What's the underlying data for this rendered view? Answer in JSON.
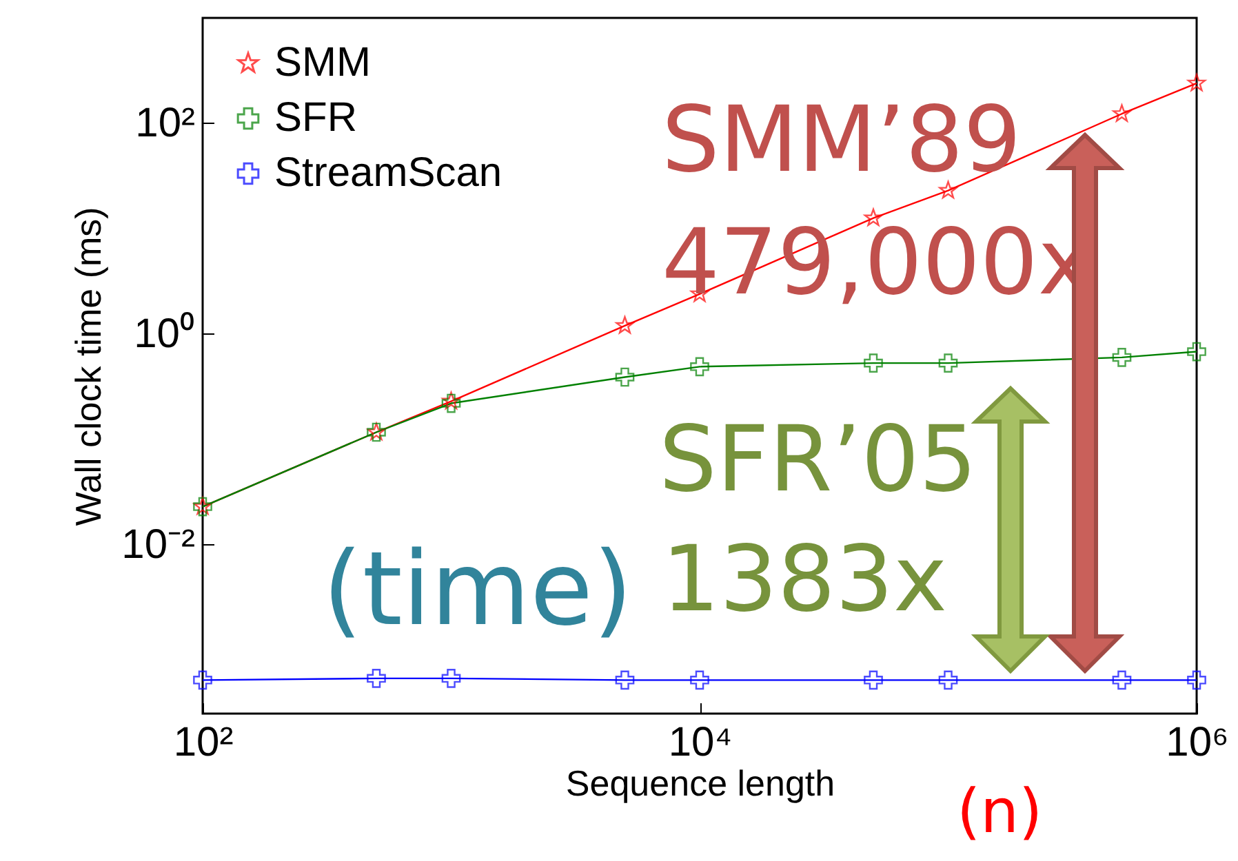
{
  "chart_data": {
    "type": "line",
    "xlabel": "Sequence length",
    "ylabel": "Wall clock time (ms)",
    "x": [
      100,
      500,
      1000,
      5000,
      10000,
      50000,
      100000,
      500000,
      1000000
    ],
    "series": [
      {
        "name": "SMM",
        "color": "#ff0000",
        "marker": "star",
        "values": [
          0.023,
          0.117,
          0.23,
          1.2,
          2.4,
          12.6,
          23,
          123,
          240
        ]
      },
      {
        "name": "SFR",
        "color": "#008000",
        "marker": "cross",
        "values": [
          0.023,
          0.117,
          0.22,
          0.39,
          0.49,
          0.53,
          0.53,
          0.6,
          0.68
        ]
      },
      {
        "name": "StreamScan",
        "color": "#0000ff",
        "marker": "cross",
        "values": [
          0.00052,
          0.00054,
          0.00054,
          0.00052,
          0.00052,
          0.00052,
          0.00052,
          0.00052,
          0.00052
        ]
      }
    ],
    "log": "xy",
    "xlim": [
      100,
      1000000
    ],
    "xticks": [
      {
        "value": 100,
        "label": "10²"
      },
      {
        "value": 10000,
        "label": "10⁴"
      },
      {
        "value": 1000000,
        "label": "10⁶"
      }
    ],
    "ylim": [
      0.00025,
      1000
    ],
    "yticks": [
      {
        "value": 0.01,
        "label": "10⁻²"
      },
      {
        "value": 1,
        "label": "10⁰"
      },
      {
        "value": 100,
        "label": "10²"
      }
    ],
    "grid": false,
    "legend": "top left",
    "annotations": [
      "SMM’89",
      "479,000x",
      "SFR’05",
      "1383x",
      "(time)",
      "(n)"
    ]
  }
}
